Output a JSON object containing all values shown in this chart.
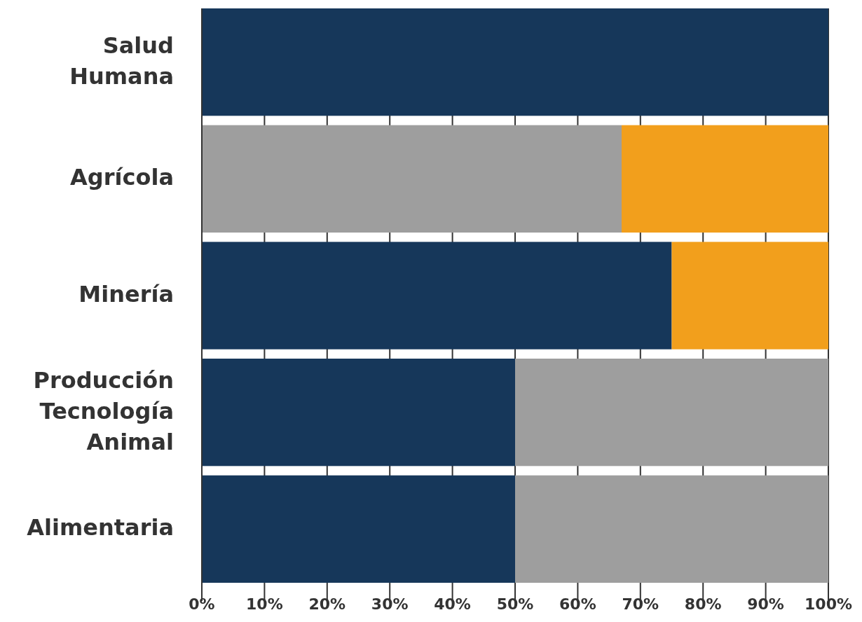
{
  "chart_data": {
    "type": "bar",
    "orientation": "horizontal",
    "stacked": true,
    "categories": [
      "Salud Humana",
      "Agrícola",
      "Minería",
      "Producción Tecnología Animal",
      "Alimentaria"
    ],
    "series": [
      {
        "color": "#16375a",
        "values": [
          100,
          0,
          75,
          50,
          50
        ]
      },
      {
        "color": "#9e9e9e",
        "values": [
          0,
          67,
          0,
          50,
          50
        ]
      },
      {
        "color": "#f29f1c",
        "values": [
          0,
          33,
          25,
          0,
          0
        ]
      }
    ],
    "xlim": [
      0,
      100
    ],
    "xticks": [
      {
        "value": 0,
        "label": "0%"
      },
      {
        "value": 10,
        "label": "10%"
      },
      {
        "value": 20,
        "label": "20%"
      },
      {
        "value": 30,
        "label": "30%"
      },
      {
        "value": 40,
        "label": "40%"
      },
      {
        "value": 50,
        "label": "50%"
      },
      {
        "value": 60,
        "label": "60%"
      },
      {
        "value": 70,
        "label": "70%"
      },
      {
        "value": 80,
        "label": "80%"
      },
      {
        "value": 90,
        "label": "90%"
      },
      {
        "value": 100,
        "label": "100%"
      }
    ],
    "grid": "x"
  }
}
